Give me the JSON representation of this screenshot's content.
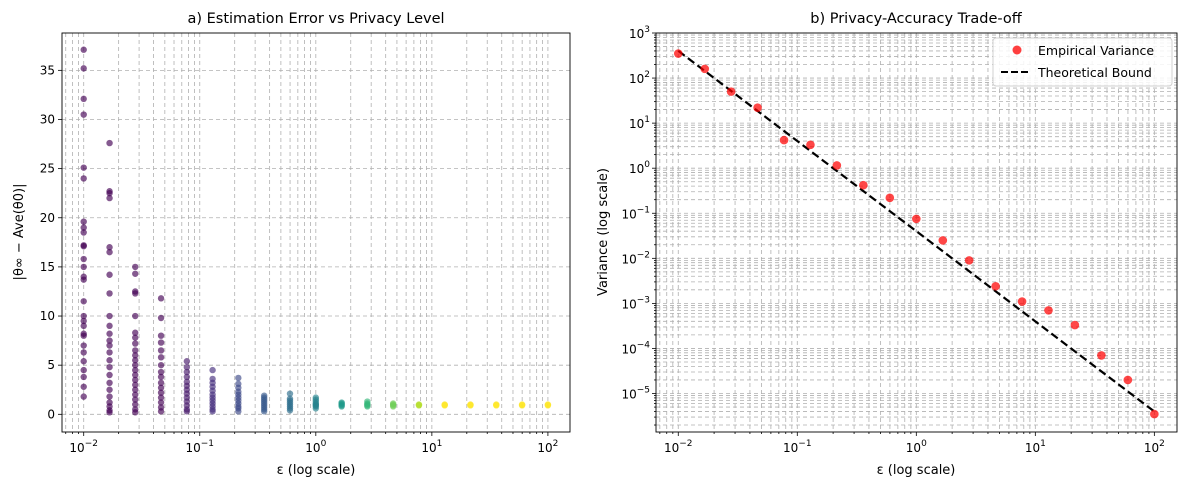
{
  "chart_data": [
    {
      "type": "scatter",
      "title": "a) Estimation Error vs Privacy Level",
      "xlabel": "ε (log scale)",
      "ylabel": "|θ∞ − Ave(θ0)|",
      "xscale": "log",
      "xlim": [
        0.0065,
        155
      ],
      "ylim": [
        -1.8,
        38.8
      ],
      "yticks": [
        0,
        5,
        10,
        15,
        20,
        25,
        30,
        35
      ],
      "xticks": [
        0.01,
        0.1,
        1,
        10,
        100
      ],
      "grid": true,
      "colormap": [
        "#440154",
        "#482878",
        "#3e4989",
        "#31688e",
        "#26828e",
        "#1f9e89",
        "#35b779",
        "#6ece58",
        "#b5de2b",
        "#fde725"
      ],
      "groups": [
        {
          "x": 0.01,
          "color": "#440154",
          "values": [
            37.1,
            35.2,
            32.1,
            30.5,
            25.1,
            24.0,
            19.6,
            19.0,
            18.5,
            17.2,
            17.1,
            15.8,
            15.0,
            14.0,
            13.7,
            11.5,
            10.0,
            9.5,
            9.0,
            8.2,
            8.0,
            7.0,
            6.3,
            5.4,
            4.5,
            3.8,
            2.8,
            1.8
          ]
        },
        {
          "x": 0.0167,
          "color": "#440154",
          "values": [
            27.6,
            22.7,
            22.5,
            22.0,
            17.0,
            16.5,
            14.2,
            12.3,
            10.0,
            9.0,
            8.2,
            7.5,
            7.0,
            6.3,
            5.5,
            4.8,
            4.0,
            3.2,
            2.5,
            1.8,
            1.2,
            0.8,
            0.4,
            0.2
          ]
        },
        {
          "x": 0.0278,
          "color": "#440154",
          "values": [
            15.0,
            14.3,
            12.5,
            12.3,
            10.0,
            8.3,
            7.8,
            7.2,
            6.5,
            6.0,
            5.5,
            5.0,
            4.5,
            4.0,
            3.5,
            3.0,
            2.5,
            2.0,
            1.5,
            1.0,
            0.5,
            0.2
          ]
        },
        {
          "x": 0.0464,
          "color": "#440154",
          "values": [
            11.8,
            9.8,
            8.0,
            7.3,
            6.5,
            5.8,
            5.0,
            4.3,
            3.8,
            3.2,
            2.7,
            2.2,
            1.7,
            1.2,
            0.7,
            0.3
          ]
        },
        {
          "x": 0.0774,
          "color": "#481a6c",
          "values": [
            5.4,
            4.8,
            4.3,
            3.8,
            3.3,
            2.9,
            2.5,
            2.1,
            1.7,
            1.3,
            0.9,
            0.5,
            0.3
          ]
        },
        {
          "x": 0.129,
          "color": "#46307e",
          "values": [
            4.5,
            3.6,
            3.2,
            2.8,
            2.4,
            2.0,
            1.7,
            1.4,
            1.1,
            0.8,
            0.5,
            0.3
          ]
        },
        {
          "x": 0.215,
          "color": "#3e4a89",
          "values": [
            3.7,
            3.1,
            2.7,
            2.3,
            2.0,
            1.7,
            1.4,
            1.1,
            0.8,
            0.6,
            0.3
          ]
        },
        {
          "x": 0.359,
          "color": "#38598c",
          "values": [
            1.9,
            1.7,
            1.5,
            1.3,
            1.1,
            0.9,
            0.7,
            0.5,
            0.3
          ]
        },
        {
          "x": 0.599,
          "color": "#2e6e8e",
          "values": [
            2.1,
            1.6,
            1.4,
            1.2,
            1.0,
            0.8,
            0.6,
            0.4
          ]
        },
        {
          "x": 1.0,
          "color": "#26828e",
          "values": [
            1.7,
            1.5,
            1.3,
            1.1,
            1.0,
            0.9,
            0.8,
            0.6
          ]
        },
        {
          "x": 1.67,
          "color": "#1f9a8a",
          "values": [
            1.2,
            1.1,
            1.0,
            0.9,
            0.8
          ]
        },
        {
          "x": 2.78,
          "color": "#35b779",
          "values": [
            1.3,
            1.1,
            1.0,
            0.9,
            0.8
          ]
        },
        {
          "x": 4.64,
          "color": "#6ece58",
          "values": [
            1.1,
            1.0,
            0.9,
            0.8
          ]
        },
        {
          "x": 7.74,
          "color": "#b5de2b",
          "values": [
            1.0,
            0.95,
            0.9
          ]
        },
        {
          "x": 12.9,
          "color": "#fde725",
          "values": [
            1.0,
            0.95,
            0.9
          ]
        },
        {
          "x": 21.5,
          "color": "#fde725",
          "values": [
            1.0,
            0.95,
            0.9
          ]
        },
        {
          "x": 35.9,
          "color": "#fde725",
          "values": [
            1.0,
            0.95,
            0.9
          ]
        },
        {
          "x": 59.9,
          "color": "#fde725",
          "values": [
            1.0,
            0.95,
            0.9
          ]
        },
        {
          "x": 100,
          "color": "#fde725",
          "values": [
            1.0,
            0.95,
            0.9
          ]
        }
      ]
    },
    {
      "type": "scatter",
      "title": "b) Privacy-Accuracy Trade-off",
      "xlabel": "ε (log scale)",
      "ylabel": "Variance (log scale)",
      "xscale": "log",
      "yscale": "log",
      "xlim": [
        0.0065,
        155
      ],
      "ylim": [
        1.4e-06,
        1000
      ],
      "xticks": [
        0.01,
        0.1,
        1,
        10,
        100
      ],
      "yticks": [
        1e-05,
        0.0001,
        0.001,
        0.01,
        0.1,
        1,
        10,
        100,
        1000
      ],
      "grid": true,
      "legend_position": "top-right",
      "series": [
        {
          "name": "Empirical Variance",
          "kind": "points",
          "color": "#ff0000",
          "x": [
            0.01,
            0.0167,
            0.0278,
            0.0464,
            0.0774,
            0.129,
            0.215,
            0.359,
            0.599,
            1.0,
            1.67,
            2.78,
            4.64,
            7.74,
            12.9,
            21.5,
            35.9,
            59.9,
            100
          ],
          "y": [
            350,
            160,
            50,
            22,
            4.2,
            3.3,
            1.15,
            0.42,
            0.22,
            0.075,
            0.025,
            0.009,
            0.0024,
            0.0011,
            0.0007,
            0.00033,
            7e-05,
            2e-05,
            3.5e-06
          ]
        },
        {
          "name": "Theoretical Bound",
          "kind": "dashed-line",
          "color": "#000000",
          "x": [
            0.01,
            100
          ],
          "y": [
            400,
            4e-06
          ]
        }
      ]
    }
  ]
}
